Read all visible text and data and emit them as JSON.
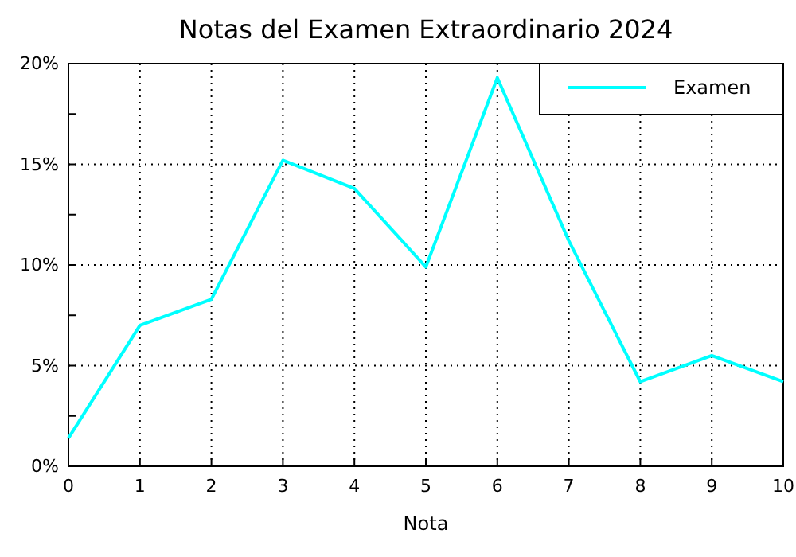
{
  "chart_data": {
    "type": "line",
    "title": "Notas del Examen Extraordinario 2024",
    "xlabel": "Nota",
    "x": [
      0,
      1,
      2,
      3,
      4,
      5,
      6,
      7,
      8,
      9,
      10
    ],
    "series": [
      {
        "name": "Examen",
        "color": "#00ffff",
        "values": [
          1.4,
          7.0,
          8.3,
          15.2,
          13.8,
          9.9,
          19.3,
          11.2,
          4.2,
          5.5,
          4.2
        ]
      }
    ],
    "xlim": [
      0,
      10
    ],
    "xticks": [
      0,
      1,
      2,
      3,
      4,
      5,
      6,
      7,
      8,
      9,
      10
    ],
    "ylim": [
      0,
      20
    ],
    "yticks": [
      {
        "value": 0,
        "label": "0%"
      },
      {
        "value": 2.5,
        "label": null
      },
      {
        "value": 5,
        "label": "5%"
      },
      {
        "value": 7.5,
        "label": null
      },
      {
        "value": 10,
        "label": "10%"
      },
      {
        "value": 12.5,
        "label": null
      },
      {
        "value": 15,
        "label": "15%"
      },
      {
        "value": 17.5,
        "label": null
      },
      {
        "value": 20,
        "label": "20%"
      }
    ],
    "grid": true,
    "legend": "top right",
    "marker": "none",
    "line_style": "solid"
  }
}
